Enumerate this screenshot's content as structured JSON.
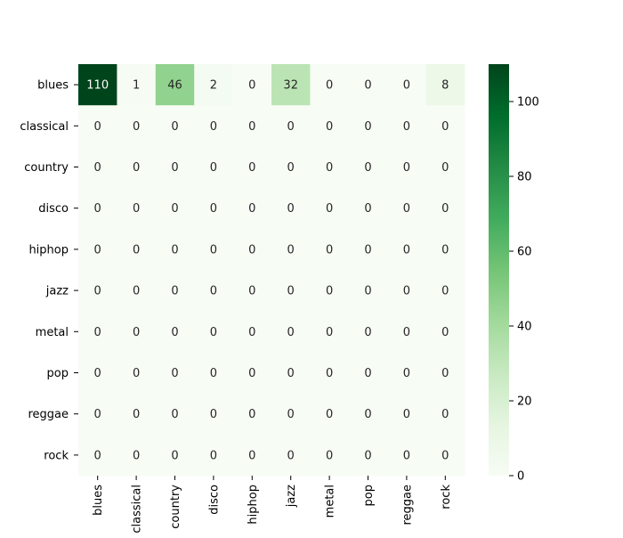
{
  "chart_data": {
    "type": "heatmap",
    "title": "",
    "xlabel": "",
    "ylabel": "",
    "x_categories": [
      "blues",
      "classical",
      "country",
      "disco",
      "hiphop",
      "jazz",
      "metal",
      "pop",
      "reggae",
      "rock"
    ],
    "y_categories": [
      "blues",
      "classical",
      "country",
      "disco",
      "hiphop",
      "jazz",
      "metal",
      "pop",
      "reggae",
      "rock"
    ],
    "values": [
      [
        110,
        1,
        46,
        2,
        0,
        32,
        0,
        0,
        0,
        8
      ],
      [
        0,
        0,
        0,
        0,
        0,
        0,
        0,
        0,
        0,
        0
      ],
      [
        0,
        0,
        0,
        0,
        0,
        0,
        0,
        0,
        0,
        0
      ],
      [
        0,
        0,
        0,
        0,
        0,
        0,
        0,
        0,
        0,
        0
      ],
      [
        0,
        0,
        0,
        0,
        0,
        0,
        0,
        0,
        0,
        0
      ],
      [
        0,
        0,
        0,
        0,
        0,
        0,
        0,
        0,
        0,
        0
      ],
      [
        0,
        0,
        0,
        0,
        0,
        0,
        0,
        0,
        0,
        0
      ],
      [
        0,
        0,
        0,
        0,
        0,
        0,
        0,
        0,
        0,
        0
      ],
      [
        0,
        0,
        0,
        0,
        0,
        0,
        0,
        0,
        0,
        0
      ],
      [
        0,
        0,
        0,
        0,
        0,
        0,
        0,
        0,
        0,
        0
      ]
    ],
    "colormap": "Greens",
    "color_low": "#f7fcf5",
    "color_high": "#00441b",
    "vmin": 0,
    "vmax": 110,
    "colorbar_ticks": [
      0,
      20,
      40,
      60,
      80,
      100
    ],
    "annotations": true,
    "annotation_dark_text": "#262626",
    "annotation_light_text": "#ffffff",
    "grid": false
  }
}
